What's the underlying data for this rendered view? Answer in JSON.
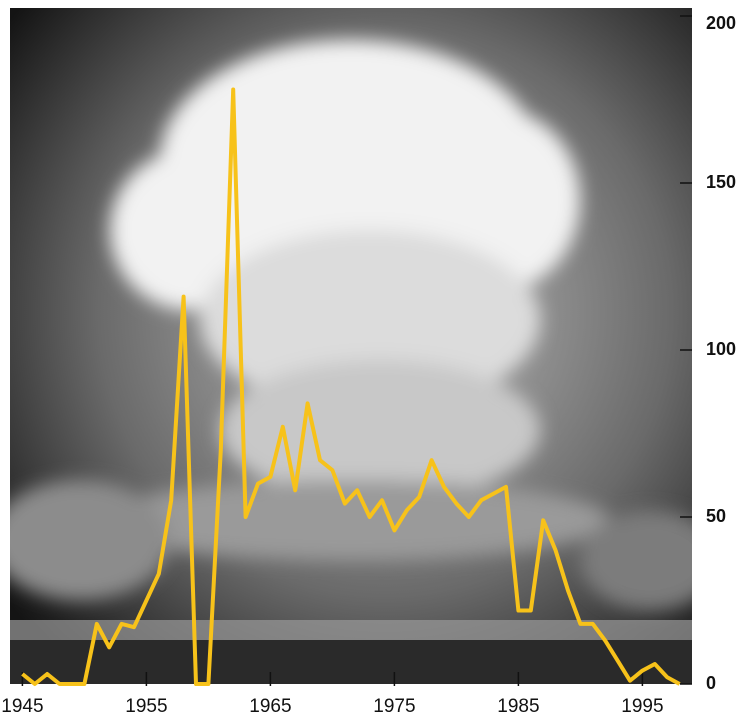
{
  "chart_data": {
    "type": "line",
    "x": [
      1945,
      1946,
      1947,
      1948,
      1949,
      1950,
      1951,
      1952,
      1953,
      1954,
      1955,
      1956,
      1957,
      1958,
      1959,
      1960,
      1961,
      1962,
      1963,
      1964,
      1965,
      1966,
      1967,
      1968,
      1969,
      1970,
      1971,
      1972,
      1973,
      1974,
      1975,
      1976,
      1977,
      1978,
      1979,
      1980,
      1981,
      1982,
      1983,
      1984,
      1985,
      1986,
      1987,
      1988,
      1989,
      1990,
      1991,
      1992,
      1993,
      1994,
      1995,
      1996,
      1997,
      1998
    ],
    "values": [
      3,
      0,
      3,
      0,
      0,
      0,
      18,
      11,
      18,
      17,
      25,
      33,
      55,
      116,
      0,
      0,
      70,
      178,
      50,
      60,
      62,
      77,
      58,
      84,
      67,
      64,
      54,
      58,
      50,
      55,
      46,
      52,
      56,
      67,
      59,
      54,
      50,
      55,
      57,
      59,
      22,
      22,
      49,
      40,
      28,
      18,
      18,
      13,
      7,
      1,
      4,
      6,
      2,
      0
    ],
    "color": "#f7c21a",
    "xlim": [
      1944,
      1999
    ],
    "xticks": [
      1945,
      1955,
      1965,
      1975,
      1985,
      1995
    ],
    "ylim": [
      0,
      200
    ],
    "yticks": [
      0,
      50,
      100,
      150,
      200
    ]
  }
}
